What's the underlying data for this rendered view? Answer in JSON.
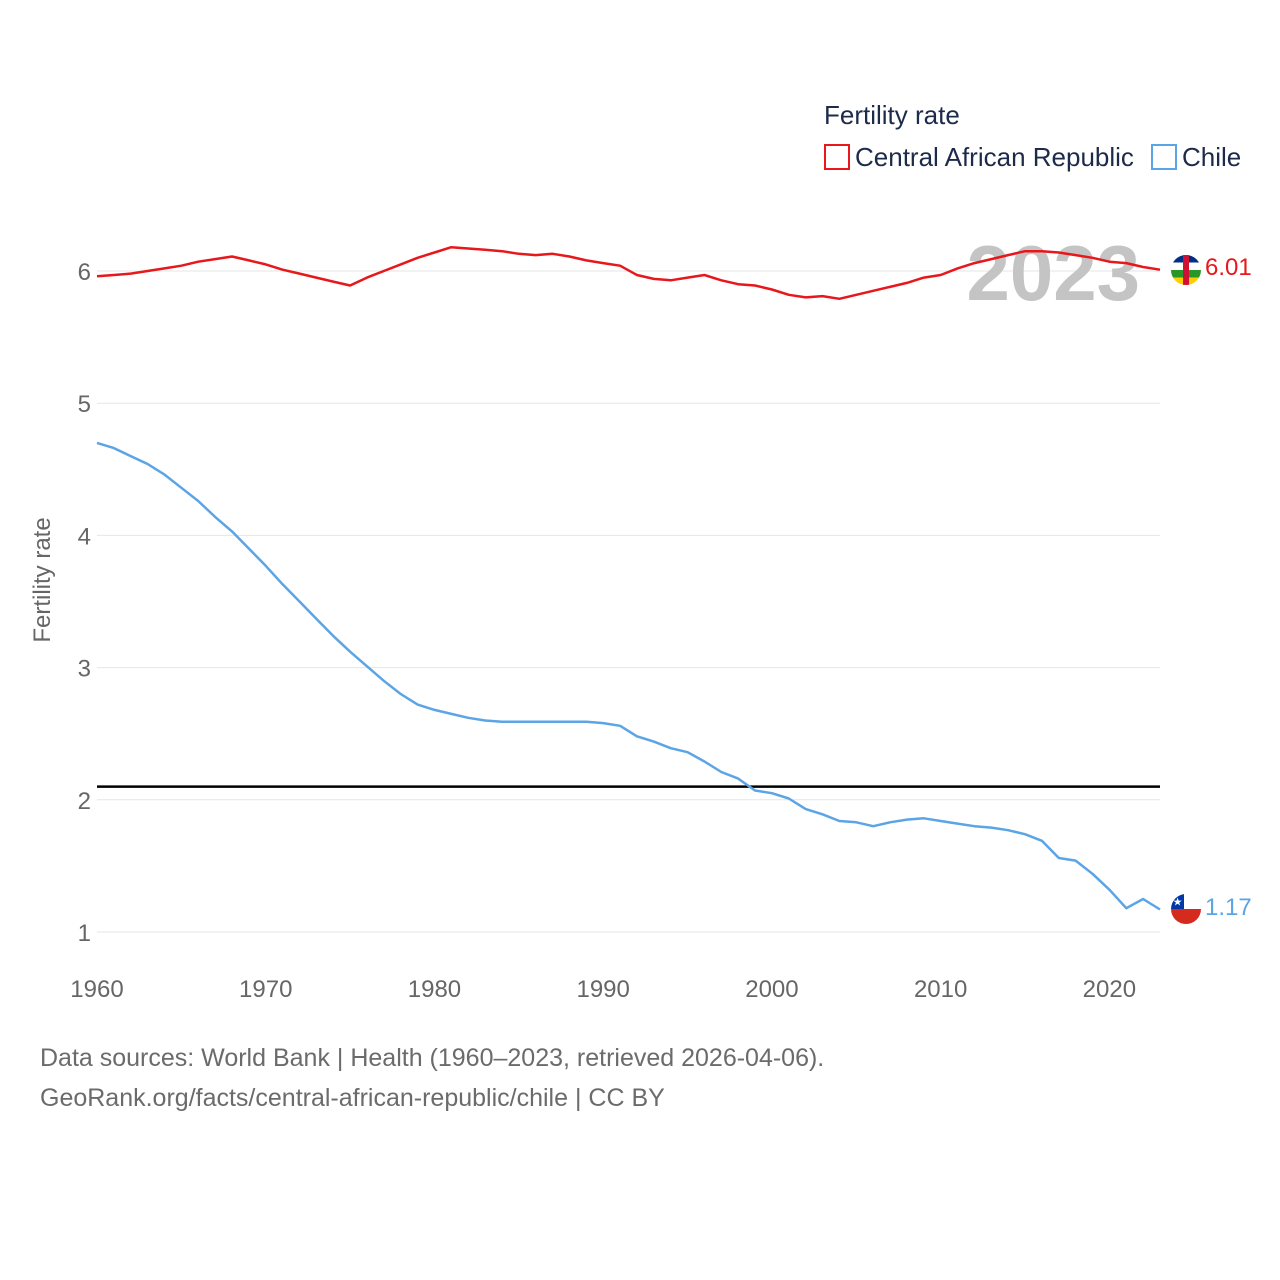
{
  "chart_data": {
    "type": "line",
    "title": "Fertility rate",
    "ylabel": "Fertility rate",
    "xlabel": "",
    "xlim": [
      1960,
      2023
    ],
    "ylim": [
      0.8,
      6.6
    ],
    "yticks": [
      1,
      2,
      3,
      4,
      5,
      6
    ],
    "xticks": [
      1960,
      1970,
      1980,
      1990,
      2000,
      2010,
      2020
    ],
    "current_year": "2023",
    "reference_line": {
      "value": 2.1,
      "color": "#000000"
    },
    "legend_position": "top-right",
    "x": [
      1960,
      1961,
      1962,
      1963,
      1964,
      1965,
      1966,
      1967,
      1968,
      1969,
      1970,
      1971,
      1972,
      1973,
      1974,
      1975,
      1976,
      1977,
      1978,
      1979,
      1980,
      1981,
      1982,
      1983,
      1984,
      1985,
      1986,
      1987,
      1988,
      1989,
      1990,
      1991,
      1992,
      1993,
      1994,
      1995,
      1996,
      1997,
      1998,
      1999,
      2000,
      2001,
      2002,
      2003,
      2004,
      2005,
      2006,
      2007,
      2008,
      2009,
      2010,
      2011,
      2012,
      2013,
      2014,
      2015,
      2016,
      2017,
      2018,
      2019,
      2020,
      2021,
      2022,
      2023
    ],
    "series": [
      {
        "name": "Central African Republic",
        "color": "#e8171b",
        "end_label": "6.01",
        "values": [
          5.96,
          5.97,
          5.98,
          6.0,
          6.02,
          6.04,
          6.07,
          6.09,
          6.11,
          6.08,
          6.05,
          6.01,
          5.98,
          5.95,
          5.92,
          5.89,
          5.95,
          6.0,
          6.05,
          6.1,
          6.14,
          6.18,
          6.17,
          6.16,
          6.15,
          6.13,
          6.12,
          6.13,
          6.11,
          6.08,
          6.06,
          6.04,
          5.97,
          5.94,
          5.93,
          5.95,
          5.97,
          5.93,
          5.9,
          5.89,
          5.86,
          5.82,
          5.8,
          5.81,
          5.79,
          5.82,
          5.85,
          5.88,
          5.91,
          5.95,
          5.97,
          6.02,
          6.06,
          6.09,
          6.12,
          6.15,
          6.15,
          6.14,
          6.12,
          6.1,
          6.07,
          6.06,
          6.03,
          6.01
        ]
      },
      {
        "name": "Chile",
        "color": "#5ba4e6",
        "end_label": "1.17",
        "values": [
          4.7,
          4.66,
          4.6,
          4.54,
          4.46,
          4.36,
          4.26,
          4.14,
          4.03,
          3.9,
          3.77,
          3.63,
          3.5,
          3.37,
          3.24,
          3.12,
          3.01,
          2.9,
          2.8,
          2.72,
          2.68,
          2.65,
          2.62,
          2.6,
          2.59,
          2.59,
          2.59,
          2.59,
          2.59,
          2.59,
          2.58,
          2.56,
          2.48,
          2.44,
          2.39,
          2.36,
          2.29,
          2.21,
          2.16,
          2.07,
          2.05,
          2.01,
          1.93,
          1.89,
          1.84,
          1.83,
          1.8,
          1.83,
          1.85,
          1.86,
          1.84,
          1.82,
          1.8,
          1.79,
          1.77,
          1.74,
          1.69,
          1.56,
          1.54,
          1.44,
          1.32,
          1.18,
          1.25,
          1.17
        ]
      }
    ]
  },
  "legend": {
    "title": "Fertility rate",
    "items": [
      "Central African Republic",
      "Chile"
    ]
  },
  "footer": {
    "line1": "Data sources: World Bank | Health (1960–2023, retrieved 2026-04-06).",
    "line2": "GeoRank.org/facts/central-african-republic/chile | CC BY"
  }
}
